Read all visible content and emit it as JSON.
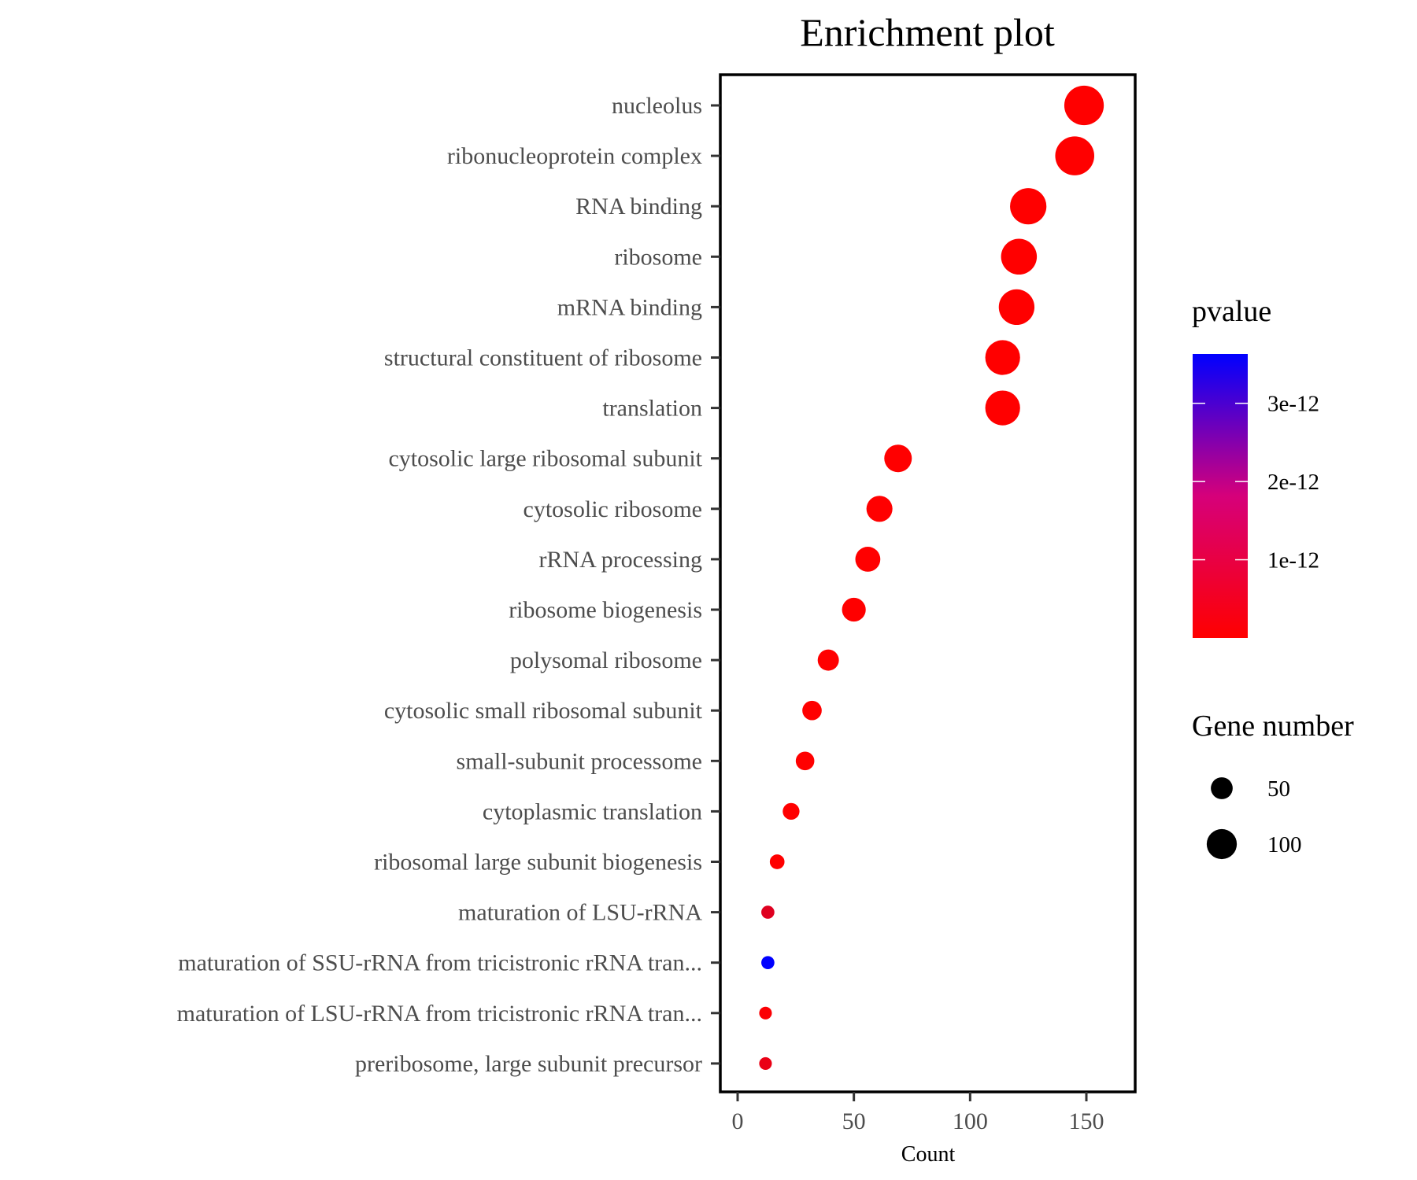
{
  "chart_data": {
    "type": "scatter",
    "title": "Enrichment plot",
    "xlabel": "Count",
    "ylabel": "",
    "xlim": [
      -8,
      170
    ],
    "xticks": [
      0,
      50,
      100,
      150
    ],
    "grid": false,
    "categories": [
      "nucleolus",
      "ribonucleoprotein complex",
      "RNA binding",
      "ribosome",
      "mRNA binding",
      "structural constituent of ribosome",
      "translation",
      "cytosolic large ribosomal subunit",
      "cytosolic ribosome",
      "rRNA processing",
      "ribosome biogenesis",
      "polysomal ribosome",
      "cytosolic small ribosomal subunit",
      "small-subunit processome",
      "cytoplasmic translation",
      "ribosomal large subunit biogenesis",
      "maturation of LSU-rRNA",
      "maturation of SSU-rRNA from tricistronic rRNA tran...",
      "maturation of LSU-rRNA from tricistronic rRNA tran...",
      "preribosome, large subunit precursor"
    ],
    "count": [
      149,
      145,
      125,
      121,
      120,
      114,
      114,
      69,
      61,
      56,
      50,
      39,
      32,
      29,
      23,
      17,
      13,
      13,
      12,
      12
    ],
    "pvalue": [
      0,
      0,
      0,
      0,
      0,
      0,
      0,
      0,
      0,
      0,
      0,
      0,
      0,
      0,
      0,
      0,
      4.5e-13,
      3.63e-12,
      5e-14,
      3e-13
    ],
    "color_legend": {
      "title": "pvalue",
      "range": [
        0,
        3.63e-12
      ],
      "ticks": [
        1e-12,
        2e-12,
        3e-12
      ],
      "tick_labels": [
        "1e-12",
        "2e-12",
        "3e-12"
      ],
      "low_color": "#ff0000",
      "high_color": "#0000ff"
    },
    "size_legend": {
      "title": "Gene number",
      "values": [
        50,
        100
      ],
      "labels": [
        "50",
        "100"
      ]
    }
  }
}
